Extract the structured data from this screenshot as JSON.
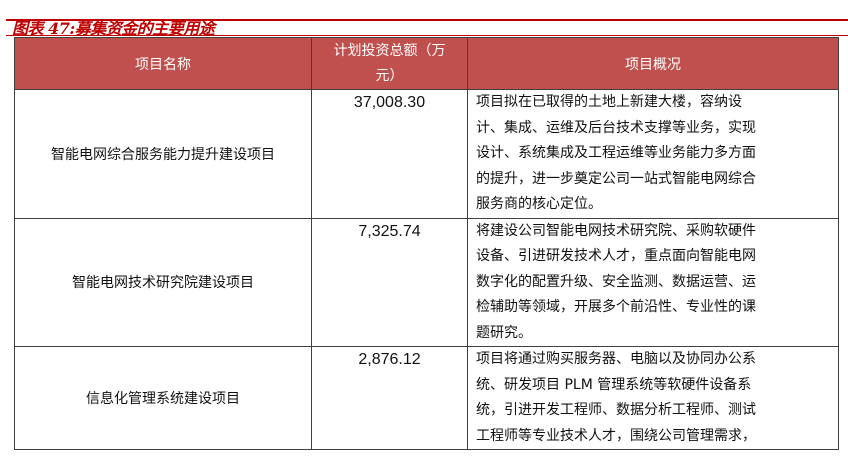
{
  "title": "图表 47:募集资金的主要用途",
  "header": {
    "name": "项目名称",
    "amount_lines": [
      "计划投资总额（万",
      "元）"
    ],
    "overview": "项目概况"
  },
  "rows": [
    {
      "name": "智能电网综合服务能力提升建设项目",
      "amount": "37,008.30",
      "lines": [
        "项目拟在已取得的土地上新建大楼，容纳设",
        "计、集成、运维及后台技术支撑等业务，实现",
        "设计、系统集成及工程运维等业务能力多方面",
        "的提升，进一步奠定公司一站式智能电网综合",
        "服务商的核心定位。"
      ]
    },
    {
      "name": "智能电网技术研究院建设项目",
      "amount": "7,325.74",
      "lines": [
        "将建设公司智能电网技术研究院、采购软硬件",
        "设备、引进研发技术人才，重点面向智能电网",
        "数字化的配置升级、安全监测、数据运营、运",
        "检辅助等领域，开展多个前沿性、专业性的课",
        "题研究。"
      ]
    },
    {
      "name": "信息化管理系统建设项目",
      "amount": "2,876.12",
      "lines": [
        "项目将通过购买服务器、电脑以及协同办公系",
        "统、研发项目 PLM 管理系统等软硬件设备系",
        "统，引进开发工程师、数据分析工程师、测试",
        "工程师等专业技术人才，围绕公司管理需求，"
      ]
    }
  ]
}
